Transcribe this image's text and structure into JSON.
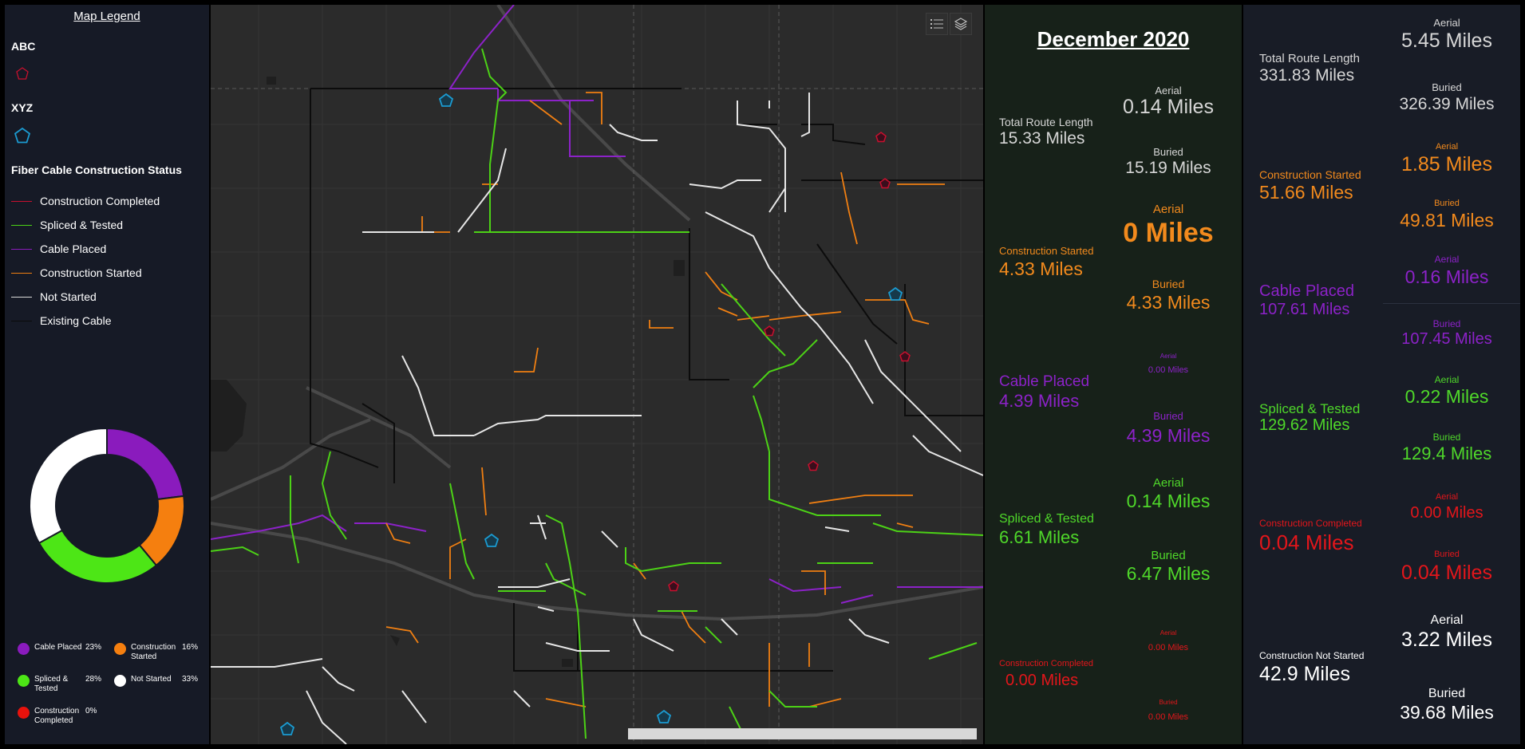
{
  "legend": {
    "title": "Map Legend",
    "group1": "ABC",
    "group2": "XYZ",
    "status_heading": "Fiber Cable Construction Status",
    "status_items": [
      {
        "label": "Construction Completed",
        "color": "#c8102e"
      },
      {
        "label": "Spliced & Tested",
        "color": "#4cd216"
      },
      {
        "label": "Cable Placed",
        "color": "#8a1bbd"
      },
      {
        "label": "Construction Started",
        "color": "#f07f12"
      },
      {
        "label": "Not Started",
        "color": "#d9d9d9"
      },
      {
        "label": "Existing Cable",
        "color": "#0a0a0a"
      }
    ],
    "abc_color": "#c8102e",
    "xyz_color": "#1b9bd1"
  },
  "donut": {
    "items": [
      {
        "label": "Cable Placed",
        "pct": "23%",
        "value": 23,
        "color": "#8a1bbd"
      },
      {
        "label": "Construction Started",
        "pct": "16%",
        "value": 16,
        "color": "#f57f0f"
      },
      {
        "label": "Spliced & Tested",
        "pct": "28%",
        "value": 28,
        "color": "#4de616"
      },
      {
        "label": "Not Started",
        "pct": "33%",
        "value": 33,
        "color": "#ffffff"
      },
      {
        "label": "Construction Completed",
        "pct": "0%",
        "value": 0,
        "color": "#e8120c"
      }
    ]
  },
  "map": {
    "toolbar": [
      "list-icon",
      "layers-icon"
    ]
  },
  "month": {
    "title": "December 2020",
    "total_label": "Total Route Length",
    "total_value": "15.33 Miles",
    "total_aerial_label": "Aerial",
    "total_aerial_value": "0.14 Miles",
    "total_buried_label": "Buried",
    "total_buried_value": "15.19 Miles",
    "started_label": "Construction Started",
    "started_value": "4.33 Miles",
    "started_aerial_label": "Aerial",
    "started_aerial_value": "0 Miles",
    "started_buried_label": "Buried",
    "started_buried_value": "4.33 Miles",
    "placed_label": "Cable Placed",
    "placed_value": "4.39 Miles",
    "placed_aerial_label": "Aerial",
    "placed_aerial_value": "0.00 Miles",
    "placed_buried_label": "Buried",
    "placed_buried_value": "4.39 Miles",
    "spliced_label": "Spliced & Tested",
    "spliced_value": "6.61 Miles",
    "spliced_aerial_label": "Aerial",
    "spliced_aerial_value": "0.14 Miles",
    "spliced_buried_label": "Buried",
    "spliced_buried_value": "6.47 Miles",
    "completed_label": "Construction Completed",
    "completed_value": "0.00 Miles",
    "completed_aerial_label": "Aerial",
    "completed_aerial_value": "0.00 Miles",
    "completed_buried_label": "Buried",
    "completed_buried_value": "0.00 Miles"
  },
  "totals": {
    "total_label": "Total Route Length",
    "total_value": "331.83 Miles",
    "total_aerial_label": "Aerial",
    "total_aerial_value": "5.45 Miles",
    "total_buried_label": "Buried",
    "total_buried_value": "326.39 Miles",
    "started_label": "Construction Started",
    "started_value": "51.66 Miles",
    "started_aerial_label": "Aerial",
    "started_aerial_value": "1.85 Miles",
    "started_buried_label": "Buried",
    "started_buried_value": "49.81 Miles",
    "placed_label": "Cable Placed",
    "placed_value": "107.61 Miles",
    "placed_aerial_label": "Aerial",
    "placed_aerial_value": "0.16 Miles",
    "placed_buried_label": "Buried",
    "placed_buried_value": "107.45 Miles",
    "spliced_label": "Spliced & Tested",
    "spliced_value": "129.62 Miles",
    "spliced_aerial_label": "Aerial",
    "spliced_aerial_value": "0.22 Miles",
    "spliced_buried_label": "Buried",
    "spliced_buried_value": "129.4 Miles",
    "completed_label": "Construction Completed",
    "completed_value": "0.04 Miles",
    "completed_aerial_label": "Aerial",
    "completed_aerial_value": "0.00 Miles",
    "completed_buried_label": "Buried",
    "completed_buried_value": "0.04 Miles",
    "notstarted_label": "Construction Not Started",
    "notstarted_value": "42.9 Miles",
    "notstarted_aerial_label": "Aerial",
    "notstarted_aerial_value": "3.22 Miles",
    "notstarted_buried_label": "Buried",
    "notstarted_buried_value": "39.68 Miles"
  },
  "colors": {
    "orange": "#f28a1d",
    "purple": "#8c22c8",
    "green": "#4fd82a",
    "red": "#e3161b",
    "gray": "#d6d6d6"
  }
}
